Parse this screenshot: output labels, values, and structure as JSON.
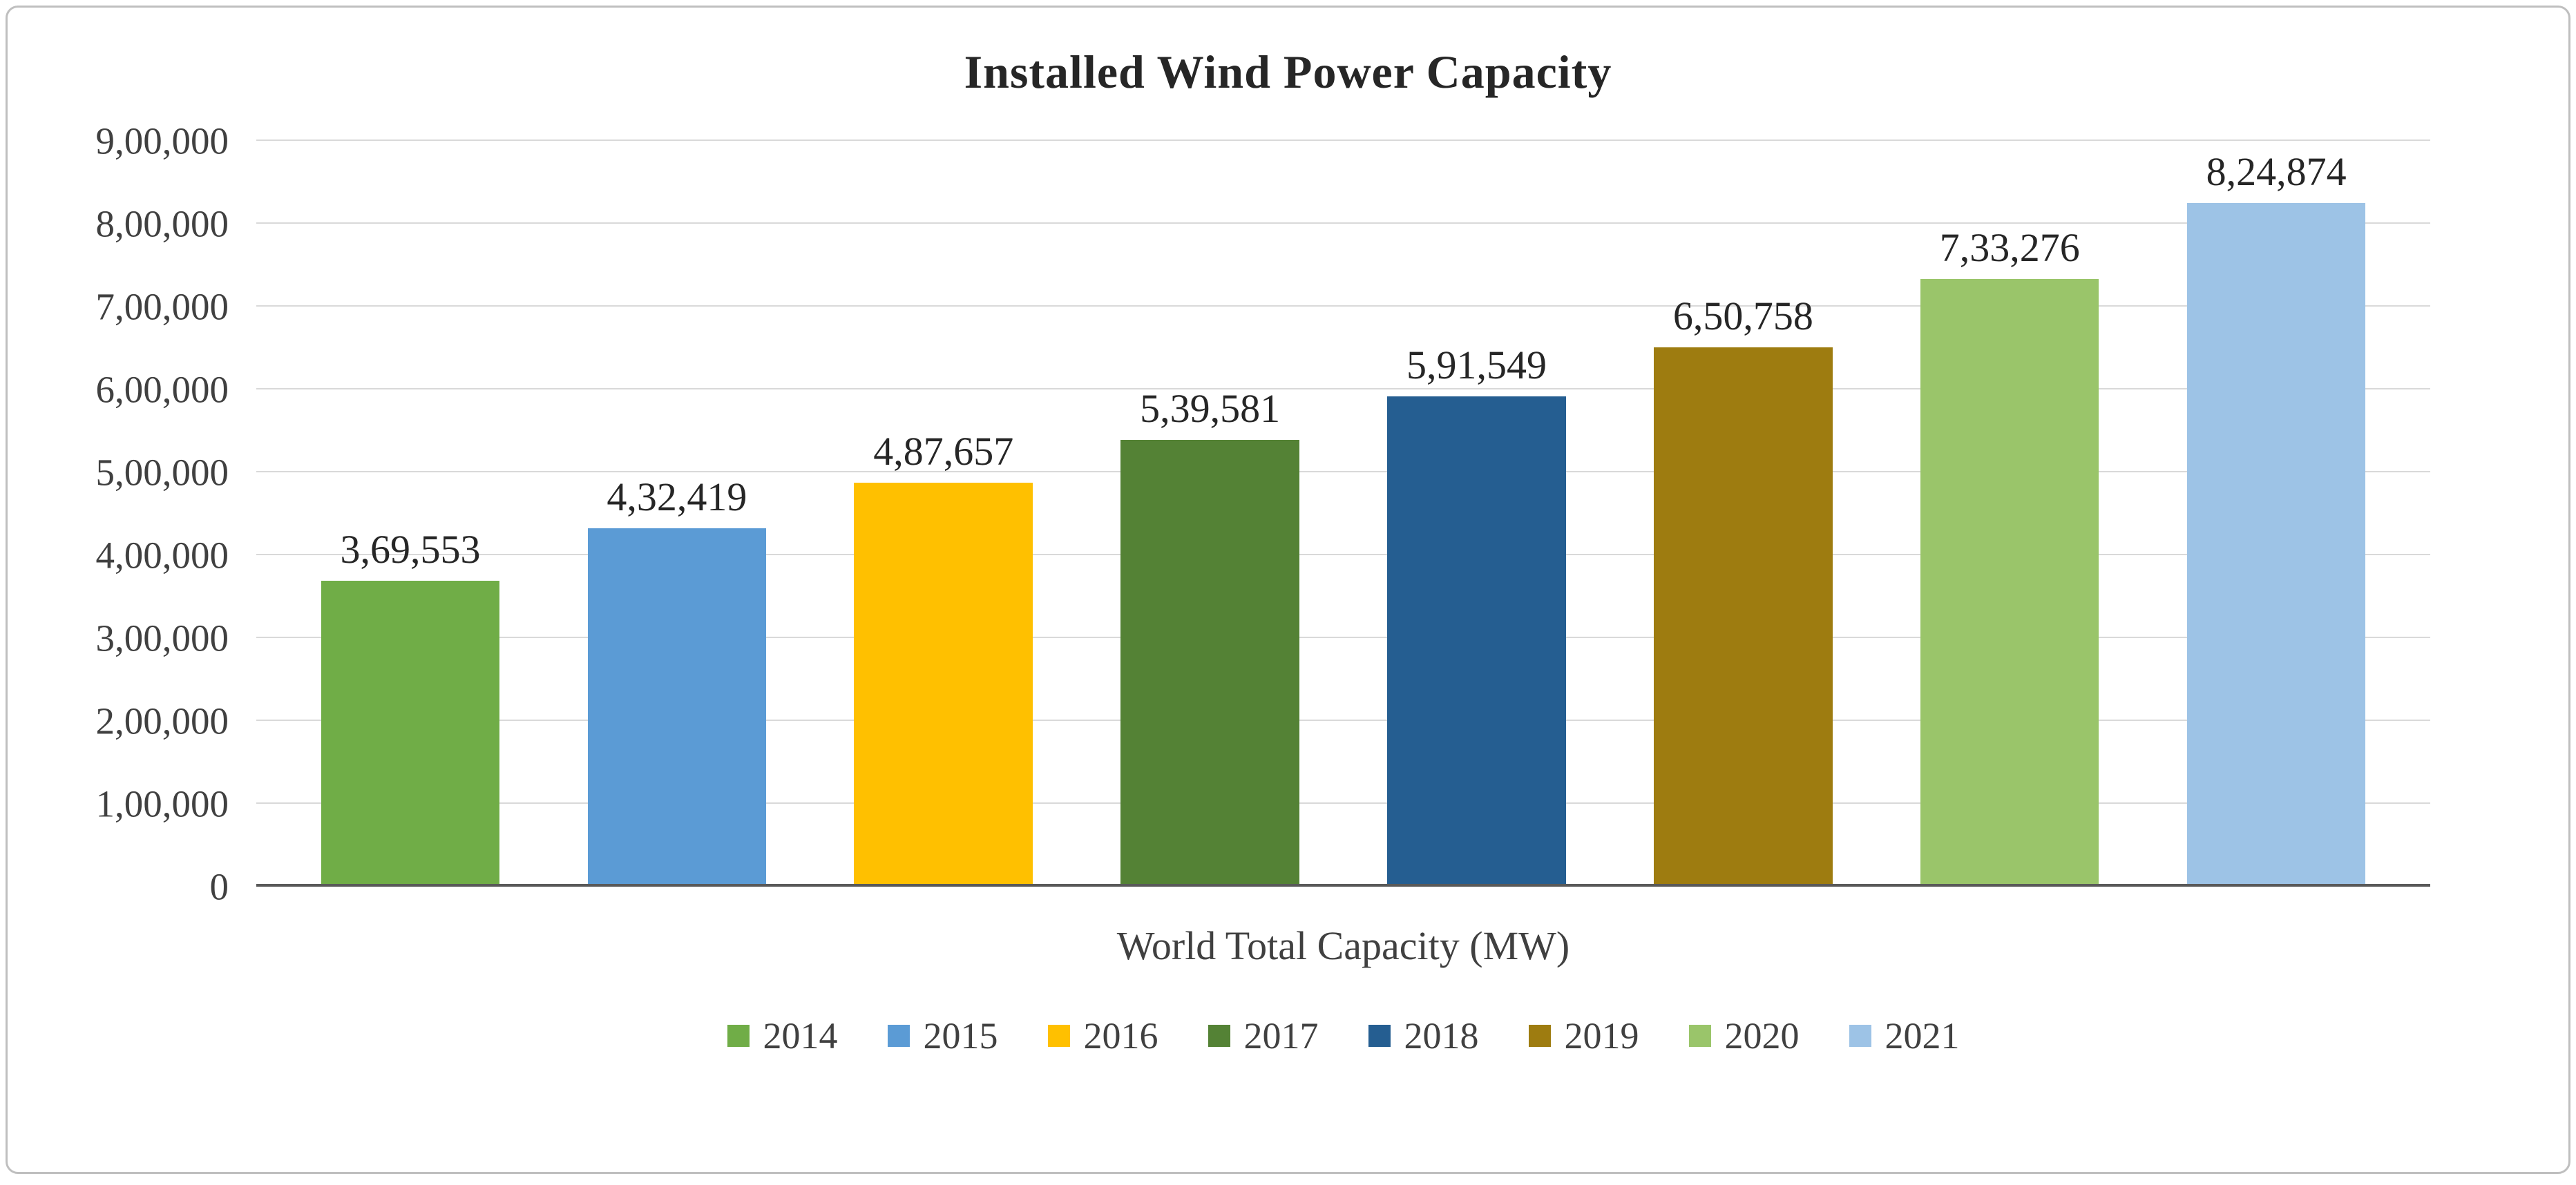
{
  "figure": {
    "background": "#FFFFFF",
    "border_color": "#BFBFBF"
  },
  "chart_data": {
    "type": "bar",
    "title": "Installed Wind Power Capacity",
    "xlabel": "World Total Capacity (MW)",
    "ylabel": "",
    "ylim": [
      0,
      900000
    ],
    "grid": true,
    "legend_position": "bottom",
    "categories": [
      "2014",
      "2015",
      "2016",
      "2017",
      "2018",
      "2019",
      "2020",
      "2021"
    ],
    "values": [
      369553,
      432419,
      487657,
      539581,
      591549,
      650758,
      733276,
      824874
    ],
    "data_labels": [
      "3,69,553",
      "4,32,419",
      "4,87,657",
      "5,39,581",
      "5,91,549",
      "6,50,758",
      "7,33,276",
      "8,24,874"
    ],
    "colors": [
      "#70AD47",
      "#5B9BD5",
      "#FFC000",
      "#548235",
      "#255E91",
      "#9E7C10",
      "#9AC56A",
      "#9DC3E6"
    ],
    "y_ticks": [
      {
        "label": "0",
        "value": 0
      },
      {
        "label": "1,00,000",
        "value": 100000
      },
      {
        "label": "2,00,000",
        "value": 200000
      },
      {
        "label": "3,00,000",
        "value": 300000
      },
      {
        "label": "4,00,000",
        "value": 400000
      },
      {
        "label": "5,00,000",
        "value": 500000
      },
      {
        "label": "6,00,000",
        "value": 600000
      },
      {
        "label": "7,00,000",
        "value": 700000
      },
      {
        "label": "8,00,000",
        "value": 800000
      },
      {
        "label": "9,00,000",
        "value": 900000
      }
    ],
    "gridline_color": "#D9D9D9",
    "axis_line_color": "#595959",
    "text_color": "#404040"
  }
}
